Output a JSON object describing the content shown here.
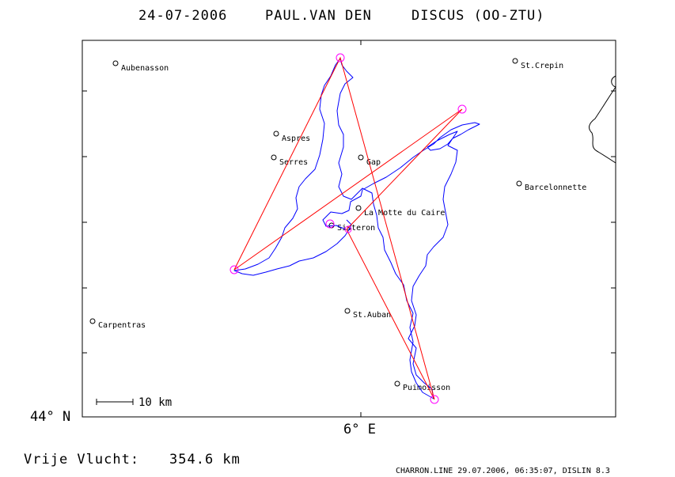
{
  "header": {
    "date": "24-07-2006",
    "pilot": "PAUL.VAN DEN",
    "glider": "DISCUS (OO-ZTU)"
  },
  "axes": {
    "y_label": "44° N",
    "x_label": "6° E"
  },
  "scale": {
    "label": "10 km"
  },
  "summary": {
    "label": "Vrije Vlucht:",
    "distance": "354.6 km"
  },
  "footer": {
    "text": "CHARRON.LINE 29.07.2006, 06:35:07, DISLIN 8.3"
  },
  "towns": [
    "Aubenasson",
    "St.Crepin",
    "Aspres",
    "Serres",
    "Gap",
    "Barcelonnette",
    "La Motte du Caire",
    "Sisteron",
    "St.Auban",
    "Carpentras",
    "Puimoisson"
  ],
  "colors": {
    "track": "#0000ff",
    "task_line": "#ff0000",
    "turnpoint": "#ff00ff",
    "frame": "#000000",
    "background": "#ffffff"
  }
}
